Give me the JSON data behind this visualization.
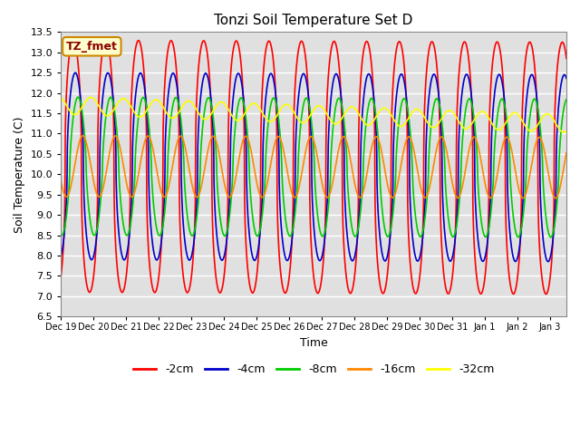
{
  "title": "Tonzi Soil Temperature Set D",
  "xlabel": "Time",
  "ylabel": "Soil Temperature (C)",
  "ylim": [
    6.5,
    13.5
  ],
  "yticks": [
    6.5,
    7.0,
    7.5,
    8.0,
    8.5,
    9.0,
    9.5,
    10.0,
    10.5,
    11.0,
    11.5,
    12.0,
    12.5,
    13.0,
    13.5
  ],
  "colors": {
    "-2cm": "#ff0000",
    "-4cm": "#0000cc",
    "-8cm": "#00cc00",
    "-16cm": "#ff8800",
    "-32cm": "#ffff00"
  },
  "legend_labels": [
    "-2cm",
    "-4cm",
    "-8cm",
    "-16cm",
    "-32cm"
  ],
  "annotation_text": "TZ_fmet",
  "annotation_color": "#8b0000",
  "annotation_bg": "#ffffcc",
  "annotation_border": "#cc8800",
  "background_color": "#e0e0e0",
  "grid_color": "#ffffff",
  "n_points": 2000,
  "total_hours": 372,
  "period_hours": 24,
  "series": {
    "-2cm": {
      "mean": 10.2,
      "amplitude": 3.1,
      "phase": 3.0,
      "drift": -0.05,
      "sharpness": 2.5
    },
    "-4cm": {
      "mean": 10.2,
      "amplitude": 2.3,
      "phase": 4.5,
      "drift": -0.05,
      "sharpness": 2.0
    },
    "-8cm": {
      "mean": 10.2,
      "amplitude": 1.7,
      "phase": 6.5,
      "drift": -0.05,
      "sharpness": 1.5
    },
    "-16cm": {
      "mean": 10.2,
      "amplitude": 0.75,
      "phase": 10.0,
      "drift": -0.04,
      "sharpness": 1.0
    },
    "-32cm": {
      "mean": 11.7,
      "amplitude": 0.22,
      "phase": 16.0,
      "drift": -0.45,
      "sharpness": 1.0
    }
  },
  "tick_labels": [
    "Dec 19",
    "Dec 20",
    "Dec 21",
    "Dec 22",
    "Dec 23",
    "Dec 24",
    "Dec 25",
    "Dec 26",
    "Dec 27",
    "Dec 28",
    "Dec 29",
    "Dec 30",
    "Dec 31",
    "Jan 1",
    "Jan 2",
    "Jan 3"
  ],
  "tick_hours": [
    0,
    24,
    48,
    72,
    96,
    120,
    144,
    168,
    192,
    216,
    240,
    264,
    288,
    312,
    336,
    360
  ]
}
